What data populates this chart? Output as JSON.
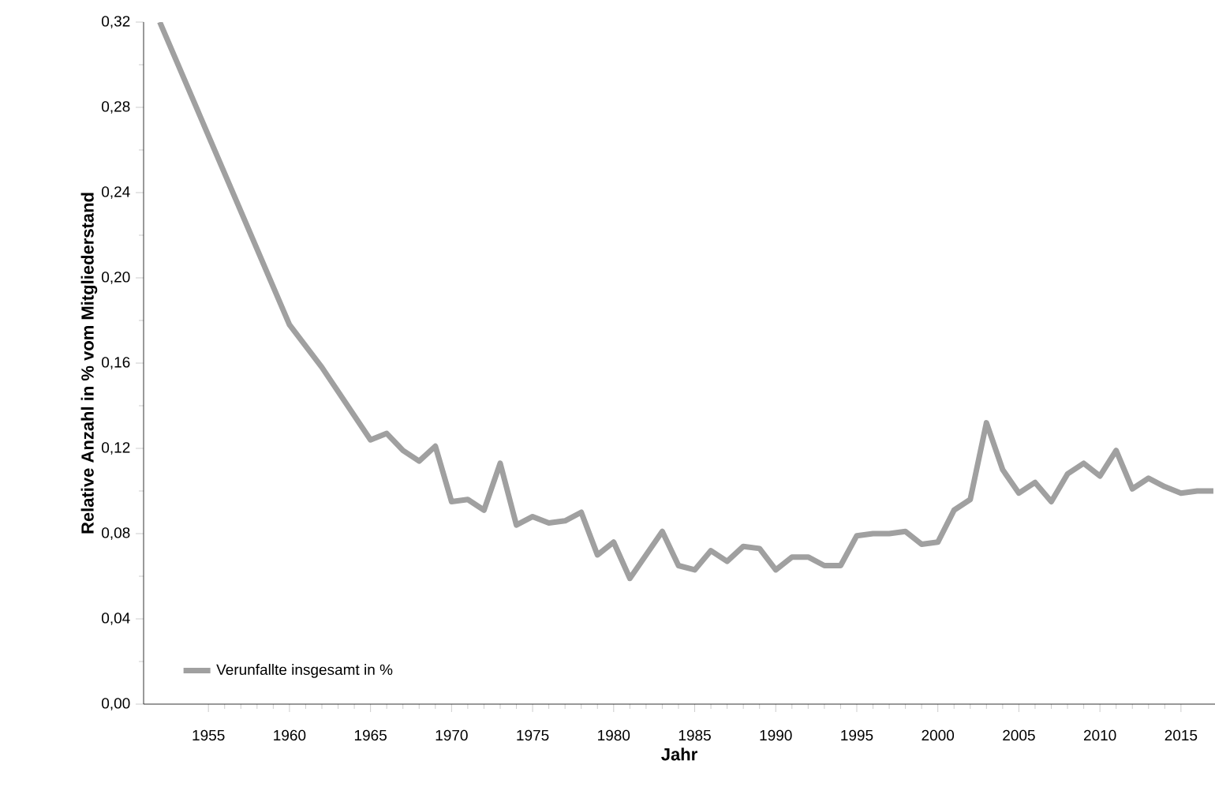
{
  "chart_data": {
    "type": "line",
    "xlabel": "Jahr",
    "ylabel": "Relative Anzahl in % vom Mitgliederstand",
    "x": [
      1952,
      1960,
      1962,
      1965,
      1966,
      1967,
      1968,
      1969,
      1970,
      1971,
      1972,
      1973,
      1974,
      1975,
      1976,
      1977,
      1978,
      1979,
      1980,
      1981,
      1982,
      1983,
      1984,
      1985,
      1986,
      1987,
      1988,
      1989,
      1990,
      1991,
      1992,
      1993,
      1994,
      1995,
      1996,
      1997,
      1998,
      1999,
      2000,
      2001,
      2002,
      2003,
      2004,
      2005,
      2006,
      2007,
      2008,
      2009,
      2010,
      2011,
      2012,
      2013,
      2014,
      2015,
      2016,
      2017
    ],
    "series": [
      {
        "name": "Verunfallte insgesamt in %",
        "color": "#a0a0a0",
        "values": [
          0.32,
          0.178,
          0.158,
          0.124,
          0.127,
          0.119,
          0.114,
          0.121,
          0.095,
          0.096,
          0.091,
          0.113,
          0.084,
          0.088,
          0.085,
          0.086,
          0.09,
          0.07,
          0.076,
          0.059,
          0.07,
          0.081,
          0.065,
          0.063,
          0.072,
          0.067,
          0.074,
          0.073,
          0.063,
          0.069,
          0.069,
          0.065,
          0.065,
          0.079,
          0.08,
          0.08,
          0.081,
          0.075,
          0.076,
          0.091,
          0.096,
          0.132,
          0.11,
          0.099,
          0.104,
          0.095,
          0.108,
          0.113,
          0.107,
          0.119,
          0.101,
          0.106,
          0.102,
          0.099,
          0.1,
          0.1
        ]
      }
    ],
    "xlim": [
      1951,
      2017.1
    ],
    "ylim": [
      0,
      0.32
    ],
    "xticks": [
      1955,
      1960,
      1965,
      1970,
      1975,
      1980,
      1985,
      1990,
      1995,
      2000,
      2005,
      2010,
      2015
    ],
    "yticks": [
      {
        "value": 0,
        "label": "0,00"
      },
      {
        "value": 0.04,
        "label": "0,04"
      },
      {
        "value": 0.08,
        "label": "0,08"
      },
      {
        "value": 0.12,
        "label": "0,12"
      },
      {
        "value": 0.16,
        "label": "0,16"
      },
      {
        "value": 0.2,
        "label": "0,20"
      },
      {
        "value": 0.24,
        "label": "0,24"
      },
      {
        "value": 0.28,
        "label": "0,28"
      },
      {
        "value": 0.32,
        "label": "0,32"
      }
    ],
    "grid": false,
    "legend": "bottom left",
    "marker": "none",
    "line_style": "solid"
  }
}
